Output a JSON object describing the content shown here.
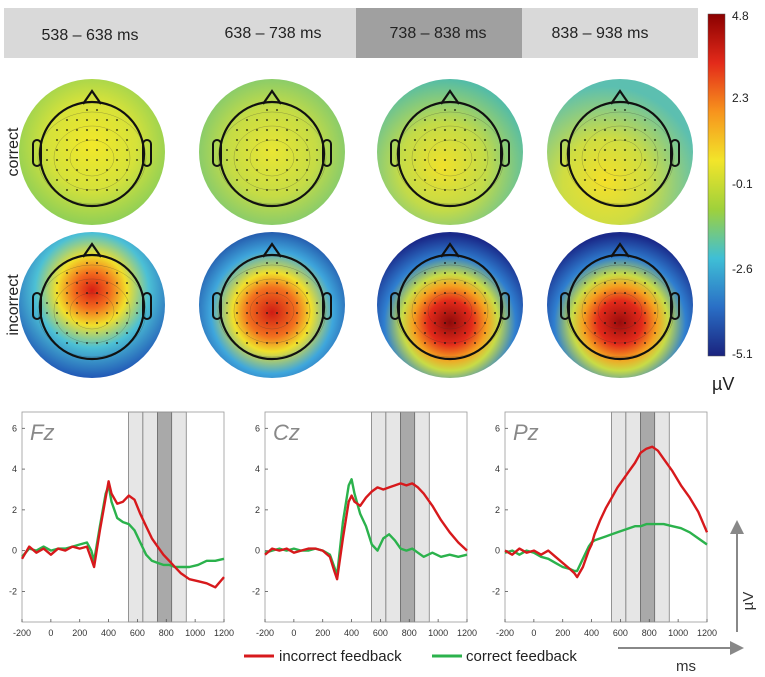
{
  "time_windows": [
    {
      "label": "538 – 638 ms",
      "highlighted": false
    },
    {
      "label": "638 – 738 ms",
      "highlighted": false
    },
    {
      "label": "738 – 838 ms",
      "highlighted": true
    },
    {
      "label": "838 – 938 ms",
      "highlighted": false
    }
  ],
  "conditions": [
    "correct",
    "incorrect"
  ],
  "colorbar": {
    "ticks": [
      "4.8",
      "2.3",
      "-0.1",
      "-2.6",
      "-5.1"
    ],
    "unit": "µV",
    "colors": [
      "#8b0000",
      "#e32a1a",
      "#f7941d",
      "#f2e52a",
      "#9fd13b",
      "#3fbfd6",
      "#2a6fc6",
      "#1a237e"
    ]
  },
  "colors": {
    "incorrect": "#d7191c",
    "correct": "#2bb24c",
    "window_light": "#e6e6e6",
    "window_dark": "#a9a9a9",
    "header_bg": "#d9d9d9",
    "header_dark": "#a0a0a0"
  },
  "legend": {
    "incorrect": "incorrect feedback",
    "correct": "correct feedback"
  },
  "axis_arrows": {
    "y": "µV",
    "x": "ms"
  },
  "chart_data": {
    "type": "line",
    "panels": [
      {
        "electrode": "Fz",
        "series": [
          {
            "name": "incorrect feedback",
            "x": [
              -200,
              -150,
              -100,
              -50,
              0,
              50,
              100,
              150,
              200,
              250,
              280,
              300,
              340,
              380,
              400,
              420,
              460,
              500,
              540,
              580,
              620,
              660,
              700,
              740,
              780,
              820,
              860,
              900,
              960,
              1020,
              1080,
              1140,
              1200
            ],
            "values": [
              -0.4,
              0.2,
              -0.1,
              0.1,
              -0.2,
              0.1,
              0.0,
              0.2,
              0.1,
              0.2,
              -0.4,
              -0.8,
              1.0,
              2.6,
              3.4,
              2.8,
              2.3,
              2.4,
              2.7,
              2.5,
              1.8,
              1.2,
              0.6,
              0.2,
              -0.2,
              -0.5,
              -0.8,
              -1.1,
              -1.4,
              -1.5,
              -1.6,
              -1.8,
              -1.3
            ]
          },
          {
            "name": "correct feedback",
            "x": [
              -200,
              -150,
              -100,
              -50,
              0,
              50,
              100,
              150,
              200,
              250,
              280,
              300,
              340,
              380,
              400,
              420,
              460,
              500,
              540,
              580,
              620,
              660,
              700,
              740,
              780,
              820,
              860,
              900,
              960,
              1020,
              1080,
              1140,
              1200
            ],
            "values": [
              -0.3,
              0.1,
              0.0,
              0.2,
              0.0,
              0.1,
              0.1,
              0.2,
              0.3,
              0.4,
              0.0,
              -0.5,
              1.2,
              2.8,
              3.2,
              2.4,
              1.6,
              1.4,
              1.3,
              1.0,
              0.4,
              -0.2,
              -0.5,
              -0.6,
              -0.7,
              -0.7,
              -0.8,
              -0.8,
              -0.8,
              -0.7,
              -0.5,
              -0.5,
              -0.4
            ]
          }
        ]
      },
      {
        "electrode": "Cz",
        "series": [
          {
            "name": "incorrect feedback",
            "x": [
              -200,
              -150,
              -100,
              -50,
              0,
              50,
              100,
              150,
              200,
              250,
              280,
              300,
              340,
              380,
              400,
              420,
              460,
              500,
              540,
              580,
              620,
              660,
              700,
              740,
              780,
              820,
              860,
              900,
              960,
              1020,
              1080,
              1140,
              1200
            ],
            "values": [
              -0.2,
              0.1,
              0.0,
              0.1,
              -0.1,
              0.0,
              0.1,
              0.1,
              0.0,
              -0.3,
              -1.0,
              -1.4,
              0.6,
              2.4,
              2.7,
              2.4,
              2.2,
              2.6,
              2.9,
              3.1,
              3.0,
              3.1,
              3.2,
              3.3,
              3.2,
              3.3,
              3.1,
              2.8,
              2.2,
              1.5,
              0.9,
              0.4,
              0.0
            ]
          },
          {
            "name": "correct feedback",
            "x": [
              -200,
              -150,
              -100,
              -50,
              0,
              50,
              100,
              150,
              200,
              250,
              280,
              300,
              340,
              380,
              400,
              420,
              460,
              500,
              540,
              580,
              620,
              660,
              700,
              740,
              780,
              820,
              860,
              900,
              960,
              1020,
              1080,
              1140,
              1200
            ],
            "values": [
              -0.1,
              0.0,
              0.1,
              0.0,
              0.1,
              0.0,
              0.0,
              0.1,
              0.0,
              -0.2,
              -0.8,
              -1.2,
              1.4,
              3.2,
              3.5,
              2.8,
              1.8,
              1.2,
              0.3,
              0.0,
              0.6,
              0.8,
              0.5,
              0.1,
              0.0,
              0.1,
              -0.1,
              -0.3,
              -0.1,
              -0.3,
              -0.2,
              -0.3,
              -0.2
            ]
          }
        ]
      },
      {
        "electrode": "Pz",
        "series": [
          {
            "name": "incorrect feedback",
            "x": [
              -200,
              -150,
              -100,
              -50,
              0,
              50,
              100,
              150,
              200,
              250,
              280,
              300,
              340,
              380,
              400,
              420,
              460,
              500,
              540,
              580,
              620,
              660,
              700,
              740,
              780,
              820,
              860,
              900,
              960,
              1020,
              1080,
              1140,
              1200
            ],
            "values": [
              0.0,
              -0.2,
              0.1,
              -0.1,
              0.0,
              -0.2,
              0.0,
              -0.3,
              -0.6,
              -0.9,
              -1.1,
              -1.3,
              -0.8,
              0.0,
              0.3,
              0.8,
              1.5,
              2.1,
              2.6,
              3.1,
              3.5,
              3.9,
              4.3,
              4.8,
              5.0,
              5.1,
              4.9,
              4.5,
              3.9,
              3.2,
              2.6,
              1.9,
              0.9
            ]
          },
          {
            "name": "correct feedback",
            "x": [
              -200,
              -150,
              -100,
              -50,
              0,
              50,
              100,
              150,
              200,
              250,
              280,
              300,
              340,
              380,
              400,
              420,
              460,
              500,
              540,
              580,
              620,
              660,
              700,
              740,
              780,
              820,
              860,
              900,
              960,
              1020,
              1080,
              1140,
              1200
            ],
            "values": [
              -0.1,
              0.0,
              -0.2,
              0.0,
              -0.1,
              -0.3,
              -0.4,
              -0.6,
              -0.8,
              -0.9,
              -1.0,
              -1.0,
              -0.4,
              0.2,
              0.4,
              0.5,
              0.6,
              0.7,
              0.8,
              0.9,
              1.0,
              1.1,
              1.2,
              1.2,
              1.3,
              1.3,
              1.3,
              1.3,
              1.2,
              1.1,
              0.9,
              0.6,
              0.3
            ]
          }
        ]
      }
    ],
    "x_ticks": [
      -200,
      0,
      200,
      400,
      600,
      800,
      1000,
      1200
    ],
    "y_ticks": [
      -2,
      0,
      2,
      4,
      6
    ],
    "xlim": [
      -200,
      1200
    ],
    "ylim": [
      -3.5,
      6.8
    ],
    "shaded_windows": [
      [
        538,
        638
      ],
      [
        638,
        738
      ],
      [
        738,
        838
      ],
      [
        838,
        938
      ]
    ]
  }
}
